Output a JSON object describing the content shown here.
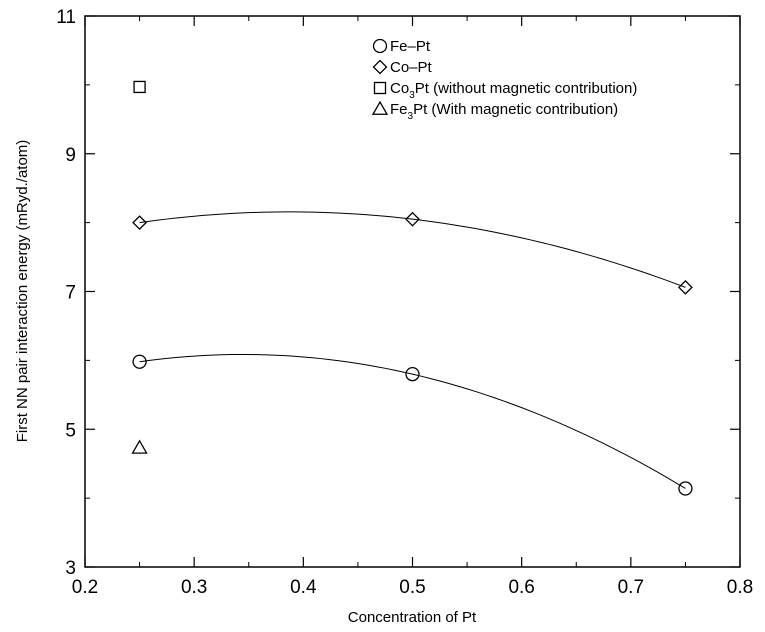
{
  "chart_data": {
    "type": "scatter",
    "title": "",
    "xlabel": "Concentration of Pt",
    "ylabel": "First NN pair interaction energy (mRyd./atom)",
    "xlim": [
      0.2,
      0.8
    ],
    "ylim": [
      3,
      11
    ],
    "xticks": [
      0.2,
      0.3,
      0.4,
      0.5,
      0.6,
      0.7,
      0.8
    ],
    "yticks": [
      3,
      5,
      7,
      9,
      11
    ],
    "xtick_labels": [
      "0.2",
      "0.3",
      "0.4",
      "0.5",
      "0.6",
      "0.7",
      "0.8"
    ],
    "ytick_labels": [
      "3",
      "5",
      "7",
      "9",
      "11"
    ],
    "grid": false,
    "legend_position": "top-right",
    "series": [
      {
        "name": "Fe–Pt",
        "marker": "circle",
        "fitted_curve": true,
        "points": [
          {
            "x": 0.25,
            "y": 5.98
          },
          {
            "x": 0.5,
            "y": 5.8
          },
          {
            "x": 0.75,
            "y": 4.14
          }
        ]
      },
      {
        "name": "Co–Pt",
        "marker": "diamond",
        "fitted_curve": true,
        "points": [
          {
            "x": 0.25,
            "y": 8.0
          },
          {
            "x": 0.5,
            "y": 8.05
          },
          {
            "x": 0.75,
            "y": 7.06
          }
        ]
      },
      {
        "name": "Co3Pt (without magnetic contribution)",
        "legend_main": "Co",
        "legend_sub": "3",
        "legend_rest": "Pt (without magnetic contribution)",
        "marker": "square",
        "fitted_curve": false,
        "points": [
          {
            "x": 0.25,
            "y": 9.97
          }
        ]
      },
      {
        "name": "Fe3Pt (With magnetic contribution)",
        "legend_main": "Fe",
        "legend_sub": "3",
        "legend_rest": "Pt (With magnetic contribution)",
        "marker": "triangle",
        "fitted_curve": false,
        "points": [
          {
            "x": 0.25,
            "y": 4.73
          }
        ]
      }
    ]
  }
}
